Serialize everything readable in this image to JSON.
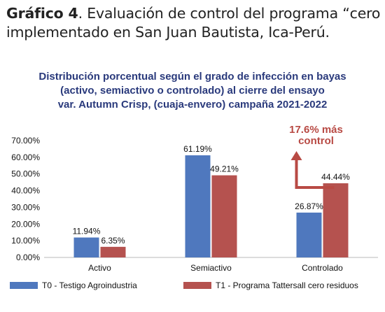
{
  "heading": {
    "label": "Gráfico 4",
    "text": ". Evaluación de control del programa “cero implementado en San Juan Bautista, Ica-Perú."
  },
  "chart_data": {
    "type": "bar",
    "title_lines": [
      "Distribución porcentual según el grado de infección en bayas",
      "(activo, semiactivo o controlado) al cierre del ensayo",
      "var. Autumn Crisp, (cuaja-envero) campaña 2021-2022"
    ],
    "categories": [
      "Activo",
      "Semiactivo",
      "Controlado"
    ],
    "series": [
      {
        "name": "T0 - Testigo Agroindustria",
        "values": [
          11.94,
          61.19,
          26.87
        ],
        "labels": [
          "11.94%",
          "61.19%",
          "26.87%"
        ],
        "color": "#4f78be"
      },
      {
        "name": "T1 - Programa Tattersall cero residuos",
        "values": [
          6.35,
          49.21,
          44.44
        ],
        "labels": [
          "6.35%",
          "49.21%",
          "44.44%"
        ],
        "color": "#b5524f"
      }
    ],
    "ylim": [
      0,
      70
    ],
    "yticks": [
      0,
      10,
      20,
      30,
      40,
      50,
      60,
      70
    ],
    "ytick_labels": [
      "0.00%",
      "10.00%",
      "20.00%",
      "30.00%",
      "40.00%",
      "50.00%",
      "60.00%",
      "70.00%"
    ],
    "annotation": {
      "lines": [
        "17.6% más",
        "control"
      ],
      "color": "#b84a44",
      "category": "Controlado"
    },
    "grid": false,
    "legend": "bottom"
  }
}
